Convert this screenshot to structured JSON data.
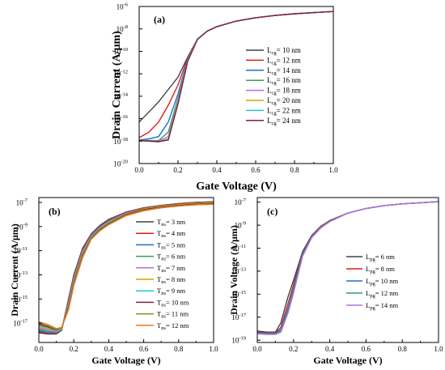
{
  "colors": [
    "#404040",
    "#e41a1c",
    "#1f6fd1",
    "#2ca25f",
    "#b070e0",
    "#d9a000",
    "#22c3d4",
    "#8b1a3a",
    "#8c8c1a",
    "#f07820"
  ],
  "chart_data": [
    {
      "id": "a",
      "type": "line",
      "panel_label": "(a)",
      "xlabel": "Gate Voltage (V)",
      "ylabel": "Drain Current (A/μm)",
      "xlim": [
        0.0,
        1.0
      ],
      "ylog": true,
      "ylim_exp": [
        -20,
        -6
      ],
      "xticks": [
        "0.0",
        "0.2",
        "0.4",
        "0.6",
        "0.8",
        "1.0"
      ],
      "yticks_exp": [
        -20,
        -18,
        -16,
        -14,
        -12,
        -10,
        -8,
        -6
      ],
      "legend_loc": "right",
      "legend_var": "L",
      "legend_sub": "cg",
      "x": [
        0.0,
        0.05,
        0.1,
        0.15,
        0.2,
        0.25,
        0.3,
        0.35,
        0.4,
        0.5,
        0.6,
        0.7,
        0.8,
        0.9,
        1.0
      ],
      "series": [
        {
          "value": "= 10 nm",
          "y_exp": [
            -16.3,
            -15.4,
            -14.5,
            -13.4,
            -12.3,
            -10.5,
            -8.9,
            -8.2,
            -7.8,
            -7.3,
            -7.0,
            -6.8,
            -6.65,
            -6.55,
            -6.45
          ]
        },
        {
          "value": "= 12 nm",
          "y_exp": [
            -17.7,
            -17.2,
            -16.3,
            -14.8,
            -13.0,
            -10.6,
            -8.9,
            -8.2,
            -7.8,
            -7.3,
            -7.0,
            -6.8,
            -6.65,
            -6.55,
            -6.45
          ]
        },
        {
          "value": "= 14 nm",
          "y_exp": [
            -17.9,
            -17.8,
            -17.6,
            -16.3,
            -13.8,
            -10.7,
            -8.9,
            -8.2,
            -7.8,
            -7.3,
            -7.0,
            -6.8,
            -6.65,
            -6.55,
            -6.45
          ]
        },
        {
          "value": "= 16 nm",
          "y_exp": [
            -17.95,
            -17.95,
            -17.95,
            -17.2,
            -14.2,
            -10.8,
            -8.9,
            -8.2,
            -7.8,
            -7.3,
            -7.0,
            -6.8,
            -6.65,
            -6.55,
            -6.45
          ]
        },
        {
          "value": "= 18 nm",
          "y_exp": [
            -17.95,
            -18.0,
            -18.0,
            -17.6,
            -14.4,
            -10.8,
            -8.9,
            -8.2,
            -7.8,
            -7.3,
            -7.0,
            -6.8,
            -6.65,
            -6.55,
            -6.45
          ]
        },
        {
          "value": "= 20 nm",
          "y_exp": [
            -17.95,
            -18.0,
            -18.05,
            -17.8,
            -14.5,
            -10.8,
            -8.9,
            -8.2,
            -7.8,
            -7.3,
            -7.0,
            -6.8,
            -6.65,
            -6.55,
            -6.45
          ]
        },
        {
          "value": "= 22 nm",
          "y_exp": [
            -17.95,
            -18.0,
            -18.05,
            -17.85,
            -14.6,
            -10.8,
            -8.9,
            -8.2,
            -7.8,
            -7.3,
            -7.0,
            -6.8,
            -6.65,
            -6.55,
            -6.45
          ]
        },
        {
          "value": "= 24 nm",
          "y_exp": [
            -17.95,
            -18.0,
            -18.05,
            -17.9,
            -14.7,
            -10.9,
            -8.95,
            -8.2,
            -7.8,
            -7.3,
            -7.0,
            -6.8,
            -6.65,
            -6.55,
            -6.45
          ]
        }
      ]
    },
    {
      "id": "b",
      "type": "line",
      "panel_label": "(b)",
      "xlabel": "Gate Voltage (V)",
      "ylabel": "Drain Current (A/μm)",
      "xlim": [
        0.0,
        1.0
      ],
      "ylog": true,
      "ylim_exp": [
        -18.6,
        -6.6
      ],
      "xticks": [
        "0.0",
        "0.2",
        "0.4",
        "0.6",
        "0.8",
        "1.0"
      ],
      "yticks_exp": [
        -17,
        -15,
        -13,
        -11,
        -9,
        -7
      ],
      "legend_loc": "right",
      "legend_var": "T",
      "legend_sub": "ns",
      "x": [
        0.0,
        0.05,
        0.1,
        0.13,
        0.17,
        0.2,
        0.25,
        0.3,
        0.35,
        0.4,
        0.5,
        0.6,
        0.7,
        0.8,
        0.9,
        1.0
      ],
      "series": [
        {
          "value": "= 3 nm",
          "y_exp": [
            -17.8,
            -17.9,
            -17.9,
            -17.6,
            -15.0,
            -13.0,
            -10.8,
            -9.6,
            -8.9,
            -8.4,
            -7.8,
            -7.45,
            -7.25,
            -7.1,
            -7.0,
            -6.95
          ]
        },
        {
          "value": "= 4 nm",
          "y_exp": [
            -17.7,
            -17.85,
            -17.85,
            -17.6,
            -15.1,
            -13.1,
            -10.9,
            -9.65,
            -8.95,
            -8.45,
            -7.8,
            -7.45,
            -7.25,
            -7.1,
            -7.0,
            -6.95
          ]
        },
        {
          "value": "= 5 nm",
          "y_exp": [
            -17.6,
            -17.8,
            -17.8,
            -17.6,
            -15.2,
            -13.2,
            -11.0,
            -9.7,
            -9.0,
            -8.5,
            -7.85,
            -7.5,
            -7.3,
            -7.15,
            -7.05,
            -7.0
          ]
        },
        {
          "value": "= 6 nm",
          "y_exp": [
            -17.5,
            -17.7,
            -17.75,
            -17.55,
            -15.3,
            -13.3,
            -11.05,
            -9.75,
            -9.05,
            -8.55,
            -7.9,
            -7.5,
            -7.3,
            -7.15,
            -7.05,
            -7.0
          ]
        },
        {
          "value": "= 7 nm",
          "y_exp": [
            -17.4,
            -17.6,
            -17.7,
            -17.5,
            -15.4,
            -13.4,
            -11.1,
            -9.8,
            -9.1,
            -8.6,
            -7.9,
            -7.55,
            -7.35,
            -7.2,
            -7.1,
            -7.05
          ]
        },
        {
          "value": "= 8 nm",
          "y_exp": [
            -17.3,
            -17.5,
            -17.65,
            -17.5,
            -15.5,
            -13.5,
            -11.2,
            -9.85,
            -9.15,
            -8.65,
            -7.95,
            -7.55,
            -7.35,
            -7.2,
            -7.1,
            -7.05
          ]
        },
        {
          "value": "= 9 nm",
          "y_exp": [
            -17.2,
            -17.4,
            -17.6,
            -17.45,
            -15.6,
            -13.6,
            -11.3,
            -9.9,
            -9.2,
            -8.7,
            -8.0,
            -7.6,
            -7.4,
            -7.25,
            -7.15,
            -7.1
          ]
        },
        {
          "value": "= 10 nm",
          "y_exp": [
            -17.1,
            -17.3,
            -17.55,
            -17.4,
            -15.7,
            -13.7,
            -11.4,
            -9.95,
            -9.25,
            -8.75,
            -8.0,
            -7.6,
            -7.4,
            -7.25,
            -7.15,
            -7.1
          ]
        },
        {
          "value": "= 11 nm",
          "y_exp": [
            -17.0,
            -17.2,
            -17.5,
            -17.4,
            -15.8,
            -13.8,
            -11.5,
            -10.0,
            -9.3,
            -8.8,
            -8.05,
            -7.65,
            -7.45,
            -7.3,
            -7.2,
            -7.15
          ]
        },
        {
          "value": "= 12 nm",
          "y_exp": [
            -16.9,
            -17.1,
            -17.45,
            -17.35,
            -15.9,
            -13.9,
            -11.6,
            -10.05,
            -9.35,
            -8.85,
            -8.1,
            -7.7,
            -7.45,
            -7.3,
            -7.2,
            -7.15
          ]
        }
      ]
    },
    {
      "id": "c",
      "type": "line",
      "panel_label": "(c)",
      "xlabel": "Gate Voltage (V)",
      "ylabel": "Drain Voltage (A/μm)",
      "xlim": [
        0.0,
        1.0
      ],
      "ylog": true,
      "ylim_exp": [
        -19.2,
        -6.6
      ],
      "xticks": [
        "0.0",
        "0.2",
        "0.4",
        "0.6",
        "0.8",
        "1.0"
      ],
      "yticks_exp": [
        -19,
        -17,
        -15,
        -13,
        -11,
        -9,
        -7
      ],
      "legend_loc": "right",
      "legend_var": "L",
      "legend_sub": "pg",
      "x": [
        0.0,
        0.05,
        0.1,
        0.13,
        0.17,
        0.2,
        0.25,
        0.3,
        0.35,
        0.4,
        0.5,
        0.6,
        0.7,
        0.8,
        0.9,
        1.0
      ],
      "series": [
        {
          "value": "= 6 nm",
          "y_exp": [
            -18.2,
            -18.3,
            -18.3,
            -17.5,
            -15.2,
            -13.8,
            -11.3,
            -9.9,
            -9.1,
            -8.6,
            -7.95,
            -7.55,
            -7.3,
            -7.15,
            -7.05,
            -6.95
          ]
        },
        {
          "value": "= 8 nm",
          "y_exp": [
            -18.3,
            -18.35,
            -18.35,
            -17.9,
            -15.8,
            -14.2,
            -11.4,
            -9.95,
            -9.15,
            -8.6,
            -7.95,
            -7.55,
            -7.3,
            -7.15,
            -7.05,
            -6.95
          ]
        },
        {
          "value": "= 10 nm",
          "y_exp": [
            -18.35,
            -18.4,
            -18.4,
            -18.1,
            -16.2,
            -14.5,
            -11.5,
            -10.0,
            -9.2,
            -8.65,
            -7.95,
            -7.55,
            -7.3,
            -7.15,
            -7.05,
            -6.95
          ]
        },
        {
          "value": "= 12 nm",
          "y_exp": [
            -18.4,
            -18.45,
            -18.45,
            -18.2,
            -16.4,
            -14.7,
            -11.6,
            -10.05,
            -9.2,
            -8.65,
            -7.95,
            -7.55,
            -7.3,
            -7.15,
            -7.05,
            -6.95
          ]
        },
        {
          "value": "= 14 nm",
          "y_exp": [
            -18.45,
            -18.5,
            -18.5,
            -18.3,
            -16.6,
            -14.9,
            -11.7,
            -10.1,
            -9.25,
            -8.7,
            -7.95,
            -7.55,
            -7.3,
            -7.15,
            -7.05,
            -6.95
          ]
        }
      ]
    }
  ]
}
